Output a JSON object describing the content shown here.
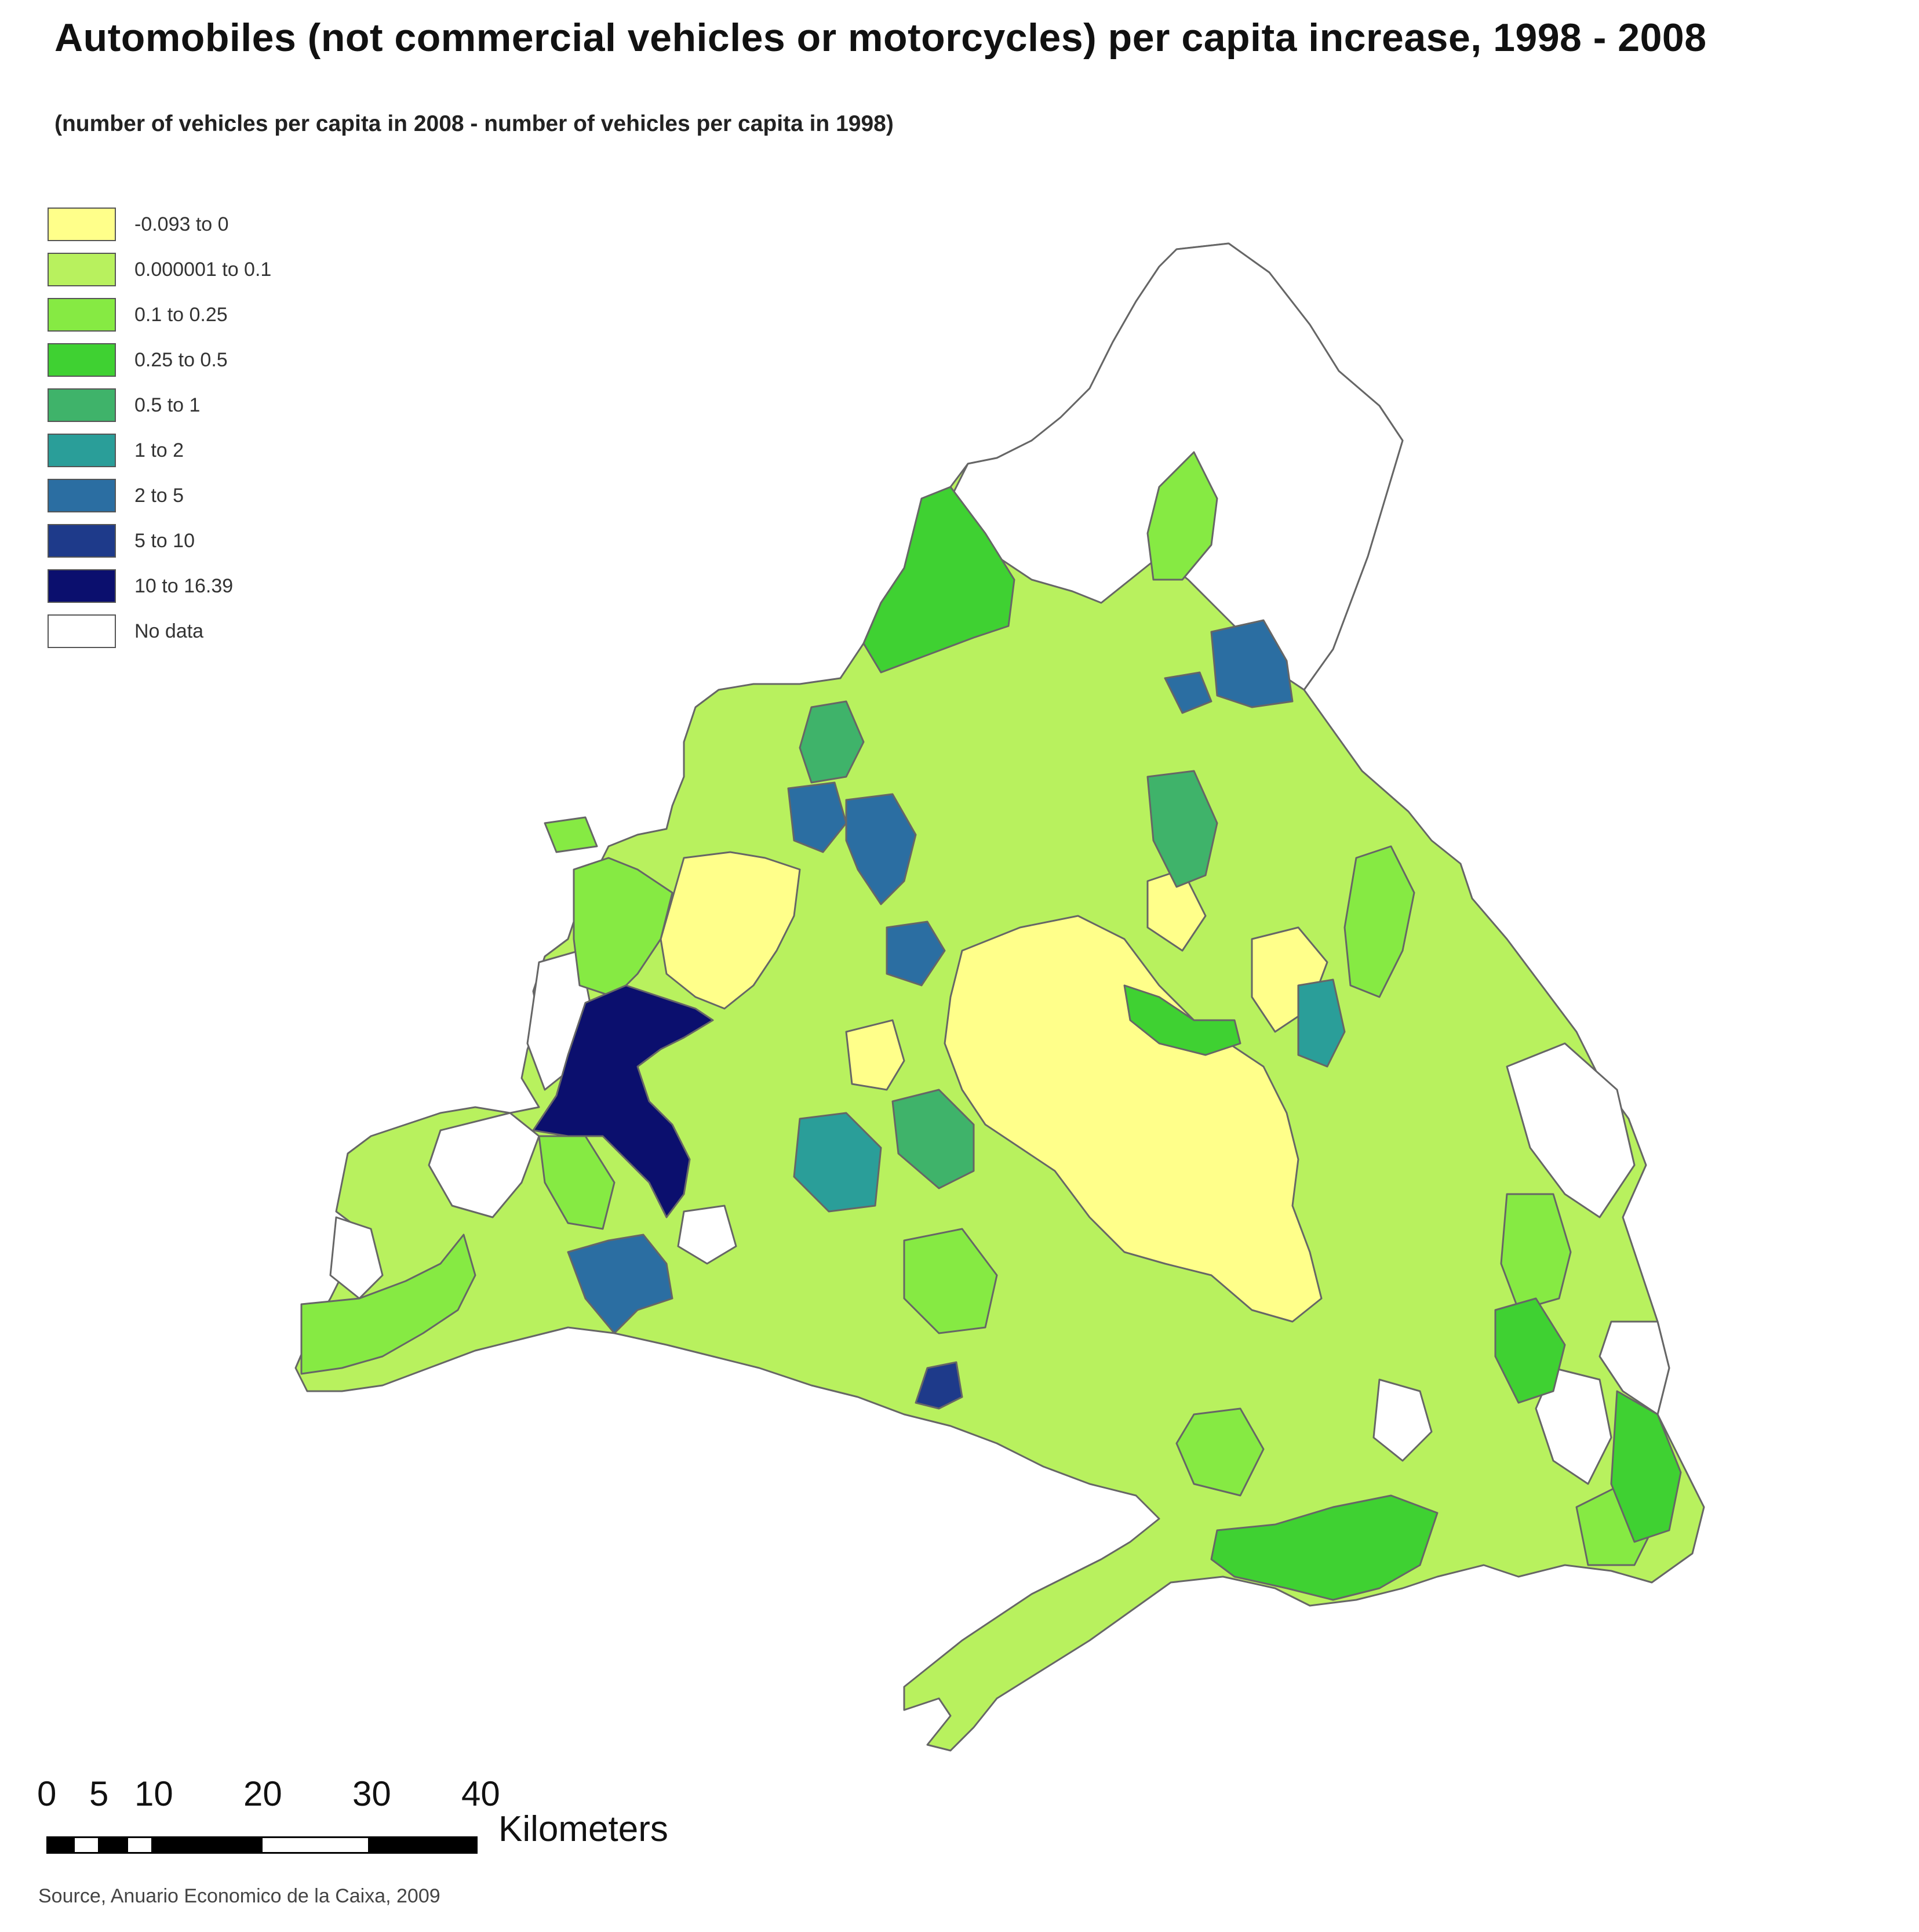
{
  "title": "Automobiles (not commercial vehicles or motorcycles) per capita increase, 1998 - 2008",
  "subtitle": "(number of vehicles per capita in 2008 - number of vehicles per capita in 1998)",
  "legend": [
    {
      "label": "-0.093 to 0",
      "color": "#ffff8a"
    },
    {
      "label": "0.000001 to 0.1",
      "color": "#b8f15e"
    },
    {
      "label": "0.1 to 0.25",
      "color": "#86ea43"
    },
    {
      "label": "0.25 to 0.5",
      "color": "#3fd132"
    },
    {
      "label": "0.5 to 1",
      "color": "#3fb36a"
    },
    {
      "label": "1 to 2",
      "color": "#2a9e99"
    },
    {
      "label": "2 to 5",
      "color": "#2b6ea2"
    },
    {
      "label": "5 to 10",
      "color": "#1e3a8a"
    },
    {
      "label": "10 to 16.39",
      "color": "#0b0f6e"
    },
    {
      "label": "No data",
      "color": "#ffffff"
    }
  ],
  "scale": {
    "ticks": [
      "0",
      "5",
      "10",
      "20",
      "30",
      "40"
    ],
    "unit": "Kilometers"
  },
  "source": "Source, Anuario Economico de la Caixa, 2009"
}
